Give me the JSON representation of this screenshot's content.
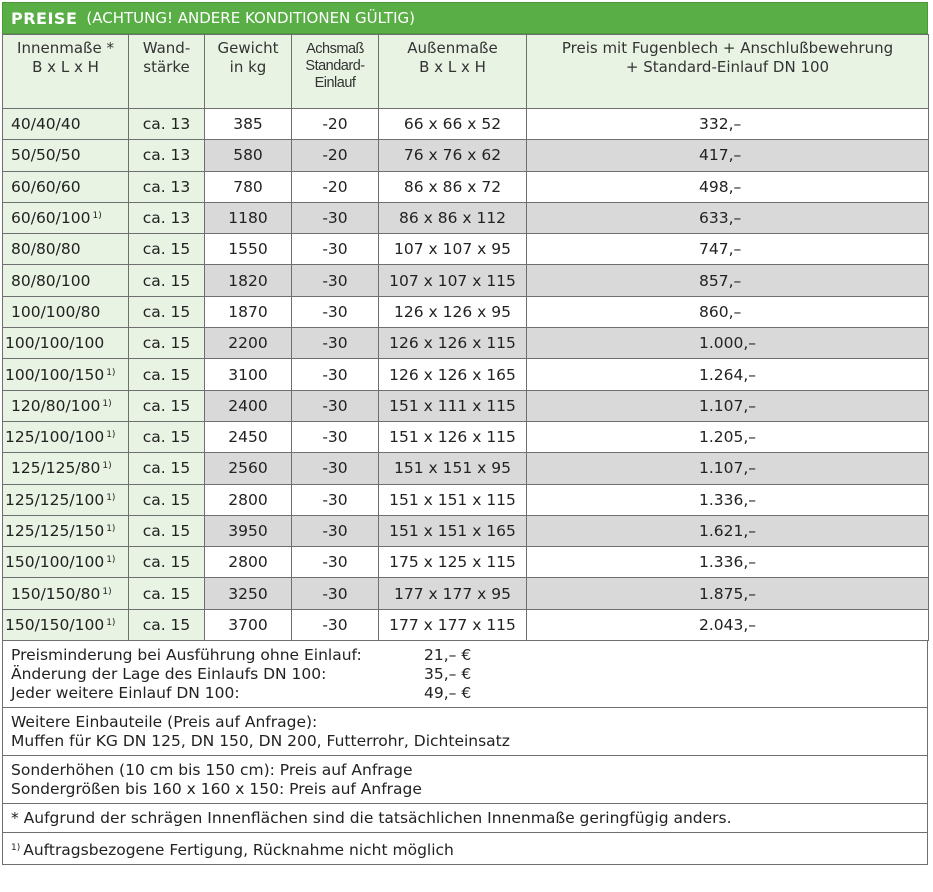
{
  "title": {
    "strong": "PREISE",
    "sub": "(ACHTUNG! ANDERE KONDITIONEN GÜLTIG)"
  },
  "colors": {
    "header_green": "#5aae46",
    "light_green": "#e8f3e3",
    "stripe_grey": "#d9d9d9"
  },
  "headers": [
    [
      "Innenmaße *",
      "B x L x H"
    ],
    [
      "Wand-",
      "stärke"
    ],
    [
      "Gewicht",
      "in kg"
    ],
    [
      "Achsmaß",
      "Standard-",
      "Einlauf"
    ],
    [
      "Außenmaße",
      "B x L x H"
    ],
    [
      "Preis mit Fugenblech + Anschlußbewehrung",
      "+ Standard-Einlauf DN 100"
    ]
  ],
  "rows": [
    {
      "inner": "40/40/40",
      "note": "",
      "wall": "ca. 13",
      "weight": "385",
      "axis": "-20",
      "outer": "66 x 66 x 52",
      "price": "332,–"
    },
    {
      "inner": "50/50/50",
      "note": "",
      "wall": "ca. 13",
      "weight": "580",
      "axis": "-20",
      "outer": "76 x 76 x 62",
      "price": "417,–"
    },
    {
      "inner": "60/60/60",
      "note": "",
      "wall": "ca. 13",
      "weight": "780",
      "axis": "-20",
      "outer": "86 x 86 x 72",
      "price": "498,–"
    },
    {
      "inner": "60/60/100",
      "note": "1)",
      "wall": "ca. 13",
      "weight": "1180",
      "axis": "-30",
      "outer": "86 x 86 x 112",
      "price": "633,–"
    },
    {
      "inner": "80/80/80",
      "note": "",
      "wall": "ca. 15",
      "weight": "1550",
      "axis": "-30",
      "outer": "107 x 107 x 95",
      "price": "747,–"
    },
    {
      "inner": "80/80/100",
      "note": "",
      "wall": "ca. 15",
      "weight": "1820",
      "axis": "-30",
      "outer": "107 x 107 x 115",
      "price": "857,–"
    },
    {
      "inner": "100/100/80",
      "note": "",
      "wall": "ca. 15",
      "weight": "1870",
      "axis": "-30",
      "outer": "126 x 126 x 95",
      "price": "860,–"
    },
    {
      "inner": "100/100/100",
      "note": "",
      "wall": "ca. 15",
      "weight": "2200",
      "axis": "-30",
      "outer": "126 x 126 x 115",
      "price": "1.000,–"
    },
    {
      "inner": "100/100/150",
      "note": "1)",
      "wall": "ca. 15",
      "weight": "3100",
      "axis": "-30",
      "outer": "126 x 126 x 165",
      "price": "1.264,–"
    },
    {
      "inner": "120/80/100",
      "note": "1)",
      "wall": "ca. 15",
      "weight": "2400",
      "axis": "-30",
      "outer": "151 x 111 x 115",
      "price": "1.107,–"
    },
    {
      "inner": "125/100/100",
      "note": "1)",
      "wall": "ca. 15",
      "weight": "2450",
      "axis": "-30",
      "outer": "151 x 126 x 115",
      "price": "1.205,–"
    },
    {
      "inner": "125/125/80",
      "note": "1)",
      "wall": "ca. 15",
      "weight": "2560",
      "axis": "-30",
      "outer": "151 x 151 x 95",
      "price": "1.107,–"
    },
    {
      "inner": "125/125/100",
      "note": "1)",
      "wall": "ca. 15",
      "weight": "2800",
      "axis": "-30",
      "outer": "151 x 151 x 115",
      "price": "1.336,–"
    },
    {
      "inner": "125/125/150",
      "note": "1)",
      "wall": "ca. 15",
      "weight": "3950",
      "axis": "-30",
      "outer": "151 x 151 x 165",
      "price": "1.621,–"
    },
    {
      "inner": "150/100/100",
      "note": "1)",
      "wall": "ca. 15",
      "weight": "2800",
      "axis": "-30",
      "outer": "175 x 125 x 115",
      "price": "1.336,–"
    },
    {
      "inner": "150/150/80",
      "note": "1)",
      "wall": "ca. 15",
      "weight": "3250",
      "axis": "-30",
      "outer": "177 x 177 x 95",
      "price": "1.875,–"
    },
    {
      "inner": "150/150/100",
      "note": "1)",
      "wall": "ca. 15",
      "weight": "3700",
      "axis": "-30",
      "outer": "177 x 177 x 115",
      "price": "2.043,–"
    }
  ],
  "surcharges": [
    {
      "label": "Preisminderung bei Ausführung ohne Einlauf:",
      "value": "21,– €"
    },
    {
      "label": "Änderung der Lage des Einlaufs DN 100:",
      "value": "35,– €"
    },
    {
      "label": "Jeder weitere Einlauf DN 100:",
      "value": "49,– €"
    }
  ],
  "extras": [
    "Weitere Einbauteile (Preis auf Anfrage):",
    "Muffen für KG DN 125, DN 150, DN 200, Futterrohr, Dichteinsatz"
  ],
  "special": [
    "Sonderhöhen (10 cm bis 150 cm): Preis auf Anfrage",
    "Sondergrößen bis 160 x 160 x 150: Preis auf Anfrage"
  ],
  "footnote_star": "* Aufgrund der schrägen Innenflächen sind die tatsächlichen Innenmaße geringfügig anders.",
  "footnote_1": {
    "mark": "1)",
    "text": "Auftragsbezogene Fertigung, Rücknahme nicht möglich"
  }
}
